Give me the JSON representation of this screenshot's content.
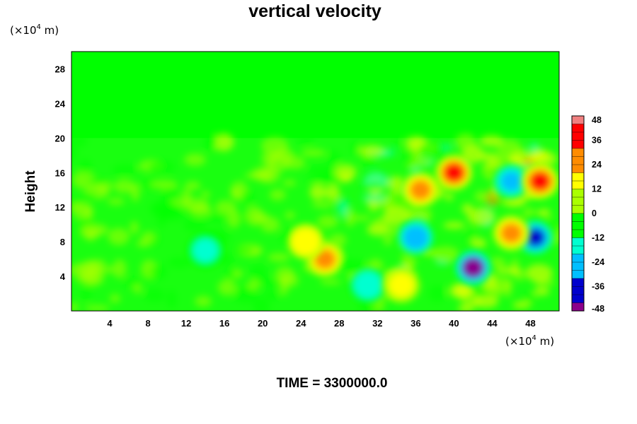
{
  "chart_data": {
    "type": "heatmap",
    "title": "vertical velocity",
    "ylabel": "Height",
    "y_unit": {
      "prefix": "(×10",
      "exponent": "4",
      "suffix": " m)"
    },
    "x_unit": {
      "prefix": "(×10",
      "exponent": "4",
      "suffix": " m)"
    },
    "xlim": [
      0,
      51
    ],
    "ylim": [
      0,
      30
    ],
    "x_ticks": [
      4,
      8,
      12,
      16,
      20,
      24,
      28,
      32,
      36,
      40,
      44,
      48
    ],
    "y_ticks": [
      4,
      8,
      12,
      16,
      20,
      24,
      28
    ],
    "colorbar": {
      "min": -48,
      "max": 48,
      "ticks": [
        48,
        36,
        24,
        12,
        0,
        -12,
        -24,
        -36,
        -48
      ],
      "colors": [
        "#8b008b",
        "#0000cd",
        "#00bfff",
        "#00ffd0",
        "#00ff00",
        "#aaff00",
        "#ffff00",
        "#ff8c00",
        "#ff0000",
        "#f08080"
      ]
    },
    "field_description_features": [
      {
        "x": 42,
        "y": 5,
        "value": -48
      },
      {
        "x": 48.5,
        "y": 8.5,
        "value": -40
      },
      {
        "x": 36,
        "y": 8.5,
        "value": -30
      },
      {
        "x": 31,
        "y": 3,
        "value": -20
      },
      {
        "x": 14,
        "y": 7,
        "value": -14
      },
      {
        "x": 46,
        "y": 15,
        "value": -28
      },
      {
        "x": 49,
        "y": 15,
        "value": 40
      },
      {
        "x": 40,
        "y": 16,
        "value": 32
      },
      {
        "x": 36.5,
        "y": 14,
        "value": 28
      },
      {
        "x": 26.5,
        "y": 6,
        "value": 26
      },
      {
        "x": 24.5,
        "y": 8,
        "value": 18
      },
      {
        "x": 34.5,
        "y": 3,
        "value": 16
      },
      {
        "x": 46,
        "y": 9,
        "value": 24
      }
    ]
  },
  "time_label": "TIME = 3300000.0"
}
